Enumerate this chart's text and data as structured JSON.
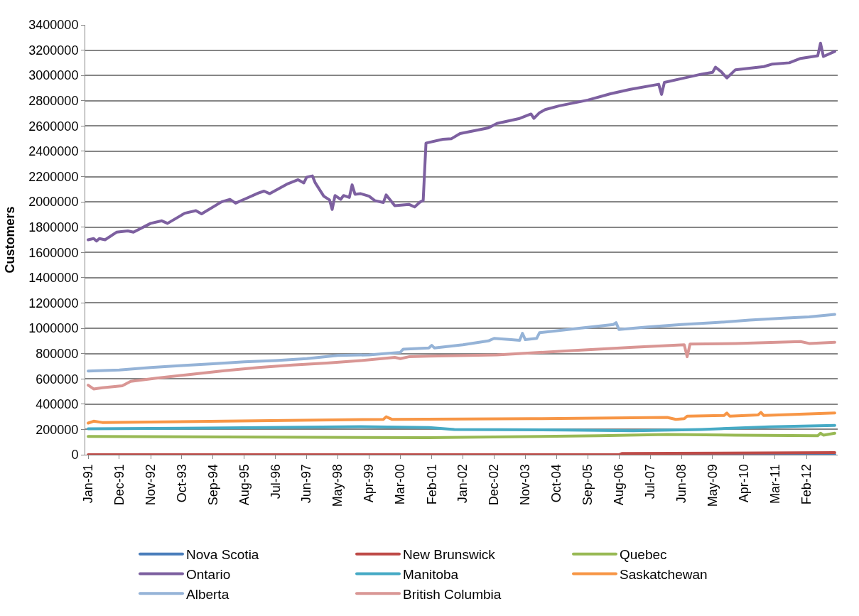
{
  "chart_data": {
    "type": "line",
    "ylabel": "Customers",
    "grid": "y",
    "legend": "bottom",
    "marker": "none",
    "line_style": "solid",
    "xlim": [
      "1990-12",
      "2013-01"
    ],
    "xticks": [
      {
        "value": "1991-01",
        "label": "Jan-91"
      },
      {
        "value": "1991-12",
        "label": "Dec-91"
      },
      {
        "value": "1992-11",
        "label": "Nov-92"
      },
      {
        "value": "1993-10",
        "label": "Oct-93"
      },
      {
        "value": "1994-09",
        "label": "Sep-94"
      },
      {
        "value": "1995-08",
        "label": "Aug-95"
      },
      {
        "value": "1996-07",
        "label": "Jul-96"
      },
      {
        "value": "1997-06",
        "label": "Jun-97"
      },
      {
        "value": "1998-05",
        "label": "May-98"
      },
      {
        "value": "1999-04",
        "label": "Apr-99"
      },
      {
        "value": "2000-03",
        "label": "Mar-00"
      },
      {
        "value": "2001-02",
        "label": "Feb-01"
      },
      {
        "value": "2002-01",
        "label": "Jan-02"
      },
      {
        "value": "2002-12",
        "label": "Dec-02"
      },
      {
        "value": "2003-11",
        "label": "Nov-03"
      },
      {
        "value": "2004-10",
        "label": "Oct-04"
      },
      {
        "value": "2005-09",
        "label": "Sep-05"
      },
      {
        "value": "2006-08",
        "label": "Aug-06"
      },
      {
        "value": "2007-07",
        "label": "Jul-07"
      },
      {
        "value": "2008-06",
        "label": "Jun-08"
      },
      {
        "value": "2009-05",
        "label": "May-09"
      },
      {
        "value": "2010-04",
        "label": "Apr-10"
      },
      {
        "value": "2011-03",
        "label": "Mar-11"
      },
      {
        "value": "2012-02",
        "label": "Feb-12"
      }
    ],
    "ylim": [
      0,
      3400000
    ],
    "yticks": [
      0,
      200000,
      400000,
      600000,
      800000,
      1000000,
      1200000,
      1400000,
      1600000,
      1800000,
      2000000,
      2200000,
      2400000,
      2600000,
      2800000,
      3000000,
      3200000,
      3400000
    ],
    "series": [
      {
        "name": "Nova Scotia",
        "color": "#4a7ebb",
        "x": [
          "2006-09",
          "2012-12"
        ],
        "values": [
          0,
          0
        ]
      },
      {
        "name": "New Brunswick",
        "color": "#be4b48",
        "x": [
          "1991-01",
          "2006-08",
          "2006-09",
          "2012-12"
        ],
        "values": [
          0,
          0,
          10000,
          17000
        ]
      },
      {
        "name": "Quebec",
        "color": "#98b954",
        "x": [
          "1991-01",
          "1995-01",
          "2001-01",
          "2006-01",
          "2008-01",
          "2010-01",
          "2012-06",
          "2012-07",
          "2012-08",
          "2012-12"
        ],
        "values": [
          145000,
          140000,
          135000,
          150000,
          160000,
          155000,
          150000,
          170000,
          155000,
          170000
        ]
      },
      {
        "name": "Ontario",
        "color": "#7d60a0",
        "x": [
          "1991-01",
          "1991-03",
          "1991-04",
          "1991-05",
          "1991-07",
          "1991-11",
          "1992-03",
          "1992-05",
          "1992-11",
          "1993-03",
          "1993-05",
          "1993-11",
          "1994-03",
          "1994-05",
          "1994-12",
          "1995-03",
          "1995-05",
          "1995-09",
          "1996-01",
          "1996-03",
          "1996-05",
          "1996-11",
          "1997-03",
          "1997-05",
          "1997-06",
          "1997-08",
          "1997-09",
          "1997-12",
          "1998-02",
          "1998-03",
          "1998-04",
          "1998-06",
          "1998-07",
          "1998-09",
          "1998-10",
          "1998-11",
          "1999-01",
          "1999-04",
          "1999-06",
          "1999-09",
          "1999-10",
          "2000-01",
          "2000-06",
          "2000-08",
          "2000-10",
          "2000-11",
          "2000-12",
          "2001-06",
          "2001-09",
          "2001-12",
          "2002-10",
          "2003-01",
          "2003-09",
          "2004-01",
          "2004-02",
          "2004-04",
          "2004-06",
          "2004-11",
          "2005-09",
          "2006-05",
          "2006-12",
          "2007-10",
          "2007-11",
          "2007-12",
          "2008-06",
          "2009-01",
          "2009-05",
          "2009-06",
          "2009-08",
          "2009-10",
          "2010-01",
          "2010-11",
          "2011-02",
          "2011-08",
          "2011-12",
          "2012-06",
          "2012-07",
          "2012-08",
          "2012-12"
        ],
        "values": [
          1700000,
          1710000,
          1690000,
          1710000,
          1700000,
          1760000,
          1770000,
          1760000,
          1830000,
          1850000,
          1830000,
          1910000,
          1930000,
          1905000,
          2000000,
          2020000,
          1990000,
          2030000,
          2070000,
          2085000,
          2065000,
          2140000,
          2175000,
          2150000,
          2195000,
          2205000,
          2150000,
          2045000,
          2015000,
          1940000,
          2050000,
          2020000,
          2050000,
          2035000,
          2135000,
          2060000,
          2065000,
          2045000,
          2010000,
          1995000,
          2055000,
          1970000,
          1980000,
          1960000,
          2000000,
          2010000,
          2465000,
          2495000,
          2500000,
          2540000,
          2585000,
          2620000,
          2660000,
          2695000,
          2660000,
          2705000,
          2730000,
          2760000,
          2805000,
          2855000,
          2890000,
          2930000,
          2850000,
          2945000,
          2975000,
          3010000,
          3025000,
          3065000,
          3030000,
          2980000,
          3045000,
          3070000,
          3090000,
          3100000,
          3135000,
          3155000,
          3255000,
          3150000,
          3190000
        ]
      },
      {
        "name": "Manitoba",
        "color": "#46aac5",
        "x": [
          "1991-01",
          "1995-01",
          "1999-01",
          "2001-01",
          "2001-10",
          "2005-01",
          "2007-01",
          "2009-01",
          "2011-01",
          "2012-12"
        ],
        "values": [
          205000,
          212000,
          222000,
          215000,
          200000,
          195000,
          190000,
          200000,
          220000,
          232000
        ]
      },
      {
        "name": "Saskatchewan",
        "color": "#f79646",
        "x": [
          "1991-01",
          "1991-03",
          "1991-06",
          "1995-01",
          "1999-09",
          "1999-10",
          "1999-12",
          "2004-01",
          "2008-01",
          "2008-04",
          "2008-07",
          "2008-08",
          "2009-09",
          "2009-10",
          "2009-11",
          "2010-09",
          "2010-10",
          "2010-11",
          "2012-12"
        ],
        "values": [
          250000,
          265000,
          255000,
          265000,
          280000,
          300000,
          280000,
          285000,
          295000,
          280000,
          285000,
          305000,
          310000,
          330000,
          305000,
          315000,
          335000,
          310000,
          330000
        ]
      },
      {
        "name": "Alberta",
        "color": "#95b3d7",
        "x": [
          "1991-01",
          "1991-12",
          "1992-11",
          "1993-10",
          "1994-09",
          "1995-08",
          "1996-07",
          "1997-06",
          "1998-05",
          "1999-04",
          "2000-03",
          "2000-04",
          "2001-01",
          "2001-02",
          "2001-03",
          "2002-01",
          "2002-10",
          "2002-12",
          "2003-06",
          "2003-09",
          "2003-10",
          "2003-11",
          "2004-03",
          "2004-04",
          "2005-06",
          "2006-06",
          "2006-07",
          "2006-08",
          "2007-06",
          "2008-06",
          "2009-06",
          "2010-06",
          "2011-06",
          "2012-03",
          "2012-12"
        ],
        "values": [
          662000,
          670000,
          690000,
          705000,
          720000,
          735000,
          745000,
          760000,
          785000,
          790000,
          810000,
          835000,
          845000,
          865000,
          845000,
          870000,
          900000,
          920000,
          910000,
          905000,
          960000,
          910000,
          920000,
          965000,
          1000000,
          1030000,
          1045000,
          990000,
          1010000,
          1030000,
          1045000,
          1065000,
          1080000,
          1090000,
          1110000
        ]
      },
      {
        "name": "British Columbia",
        "color": "#d99694",
        "x": [
          "1991-01",
          "1991-03",
          "1991-06",
          "1992-01",
          "1992-04",
          "1993-01",
          "1994-01",
          "1995-01",
          "1996-01",
          "1997-01",
          "1998-01",
          "1999-01",
          "2000-01",
          "2000-03",
          "2000-06",
          "2001-01",
          "2003-01",
          "2005-01",
          "2007-01",
          "2008-07",
          "2008-08",
          "2008-09",
          "2010-01",
          "2011-12",
          "2012-03",
          "2012-12"
        ],
        "values": [
          550000,
          520000,
          530000,
          545000,
          580000,
          605000,
          635000,
          665000,
          690000,
          710000,
          725000,
          745000,
          770000,
          760000,
          775000,
          780000,
          790000,
          820000,
          850000,
          870000,
          775000,
          875000,
          880000,
          895000,
          880000,
          890000
        ]
      }
    ]
  }
}
